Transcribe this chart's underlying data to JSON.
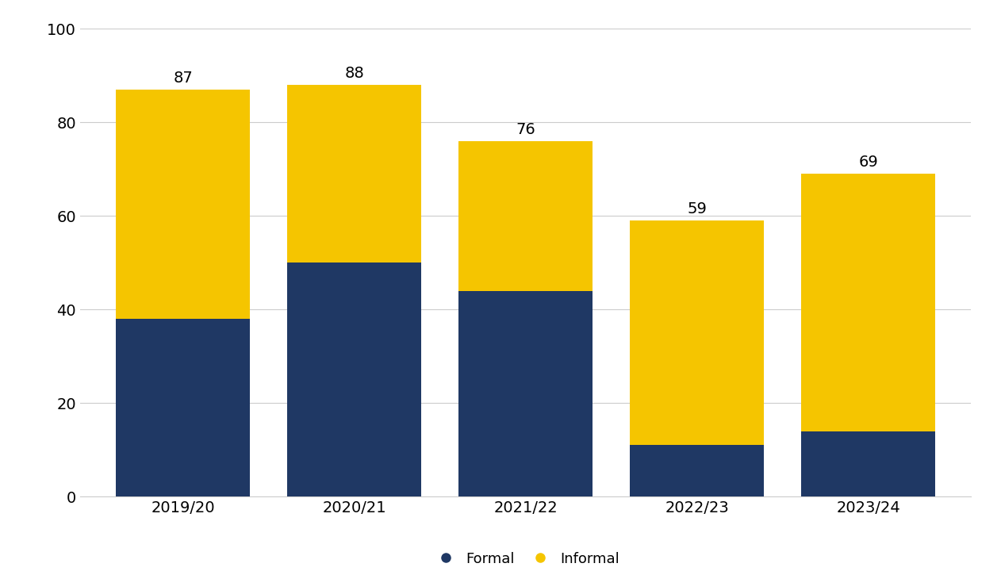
{
  "categories": [
    "2019/20",
    "2020/21",
    "2021/22",
    "2022/23",
    "2023/24"
  ],
  "formal": [
    38,
    50,
    44,
    11,
    14
  ],
  "informal": [
    49,
    38,
    32,
    48,
    55
  ],
  "totals": [
    87,
    88,
    76,
    59,
    69
  ],
  "formal_color": "#1F3864",
  "informal_color": "#F5C500",
  "background_color": "#FFFFFF",
  "ylim": [
    0,
    100
  ],
  "yticks": [
    0,
    20,
    40,
    60,
    80,
    100
  ],
  "legend_formal": "Formal",
  "legend_informal": "Informal",
  "bar_width": 0.78,
  "tick_fontsize": 14,
  "legend_fontsize": 13,
  "annotation_fontsize": 14
}
